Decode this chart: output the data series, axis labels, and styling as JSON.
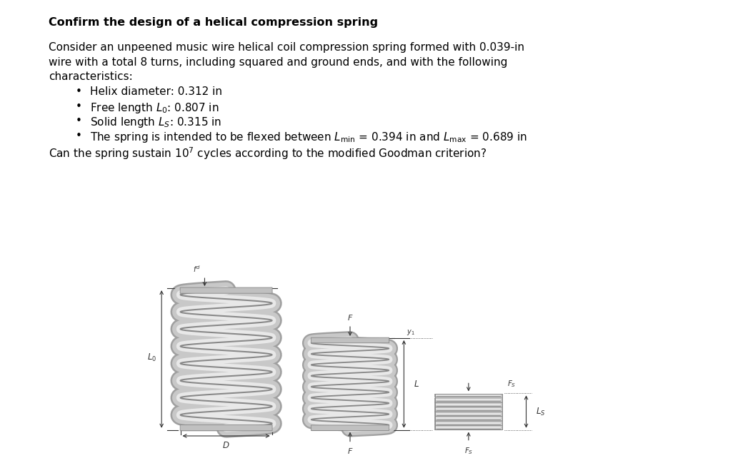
{
  "title": "Confirm the design of a helical compression spring",
  "line1": "Consider an unpeened music wire helical coil compression spring formed with 0.039-in",
  "line2": "wire with a total 8 turns, including squared and ground ends, and with the following",
  "line3": "characteristics:",
  "b1": "Helix diameter: 0.312 in",
  "b2_pre": "Free length ",
  "b2_math": "$L_0$",
  "b2_post": ": 0.807 in",
  "b3_pre": "Solid length ",
  "b3_math": "$L_S$",
  "b3_post": ": 0.315 in",
  "b4_pre": "The spring is intended to be flexed between ",
  "b4_math1": "$L_{\\mathrm{min}}$",
  "b4_eq1": " = 0.394 in and ",
  "b4_math2": "$L_{\\mathrm{max}}$",
  "b4_eq2": " = 0.689 in",
  "q_pre": "Can the spring sustain 10",
  "q_sup": "7",
  "q_post": " cycles according to the modified Goodman criterion?",
  "bg_color": "#ffffff",
  "text_color": "#000000",
  "ann_color": "#333333",
  "lc": "#c8c8c8",
  "dc": "#888888",
  "font_size": 11.0,
  "title_font_size": 11.5
}
